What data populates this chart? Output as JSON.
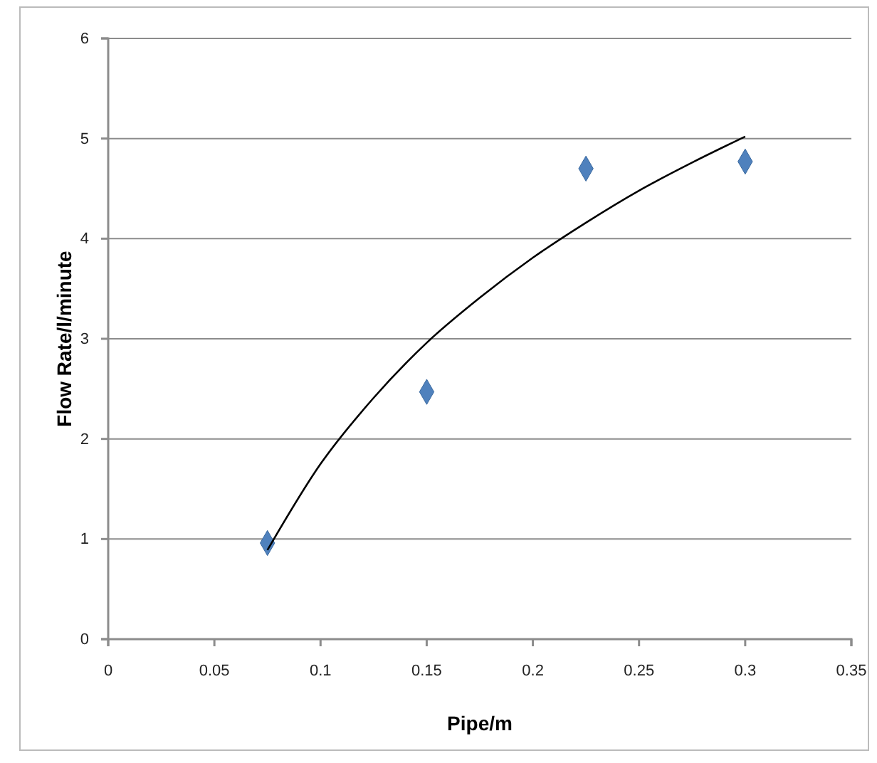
{
  "chart_data": {
    "type": "scatter",
    "xlabel": "Pipe/m",
    "ylabel": "Flow Rate/l/minute",
    "xlim": [
      0,
      0.35
    ],
    "xticks": [
      0,
      0.05,
      0.1,
      0.15,
      0.2,
      0.25,
      0.3,
      0.35
    ],
    "ylim": [
      0,
      6
    ],
    "yticks": [
      0,
      1,
      2,
      3,
      4,
      5,
      6
    ],
    "grid": "y",
    "marker": "diamond",
    "series": [
      {
        "color": "#4f81bd",
        "x": [
          0.075,
          0.15,
          0.225,
          0.3
        ],
        "values": [
          0.96,
          2.47,
          4.7,
          4.77
        ]
      },
      {
        "type": "line",
        "color": "#000000",
        "marker": "none",
        "line_style": "solid",
        "x": [
          0.075,
          0.1,
          0.125,
          0.15,
          0.175,
          0.2,
          0.225,
          0.25,
          0.275,
          0.3
        ],
        "values": [
          0.89,
          1.75,
          2.41,
          2.96,
          3.41,
          3.81,
          4.16,
          4.48,
          4.76,
          5.02
        ]
      }
    ]
  }
}
